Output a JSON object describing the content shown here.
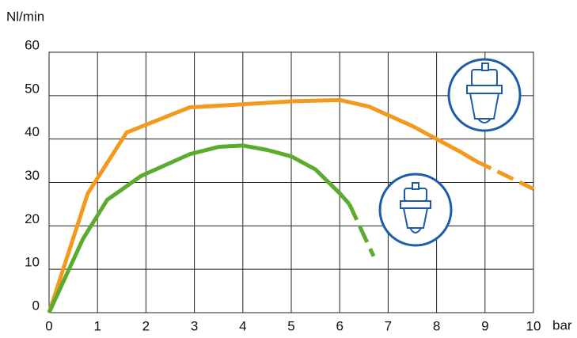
{
  "chart_data": {
    "type": "line",
    "y_label": "Nl/min",
    "x_label": "bar",
    "xlim": [
      0,
      10
    ],
    "xticks": [
      0,
      1,
      2,
      3,
      4,
      5,
      6,
      7,
      8,
      9,
      10
    ],
    "ylim": [
      0,
      60
    ],
    "yticks": [
      0,
      10,
      20,
      30,
      40,
      50,
      60
    ],
    "grid": true,
    "series": [
      {
        "color": "#f39a1e",
        "dashed": false,
        "x": [
          0,
          0.8,
          1.6,
          2.9,
          4,
          5,
          6,
          6.6,
          7.5,
          8.5,
          8.8
        ],
        "values": [
          0,
          27.5,
          41.5,
          47.3,
          48,
          48.7,
          49,
          47.5,
          43,
          37,
          35
        ]
      },
      {
        "color": "#f39a1e",
        "dashed": true,
        "x": [
          8.8,
          10
        ],
        "values": [
          35,
          28.5
        ]
      },
      {
        "color": "#5aab2e",
        "dashed": false,
        "x": [
          0,
          0.7,
          1.2,
          1.9,
          2.9,
          3.5,
          4,
          4.5,
          5,
          5.5,
          6,
          6.2
        ],
        "values": [
          0,
          17,
          26,
          31.5,
          36.5,
          38.2,
          38.5,
          37.5,
          36,
          33,
          27.5,
          25
        ]
      },
      {
        "color": "#5aab2e",
        "dashed": true,
        "x": [
          6.2,
          6.7
        ],
        "values": [
          25,
          13
        ]
      }
    ]
  }
}
